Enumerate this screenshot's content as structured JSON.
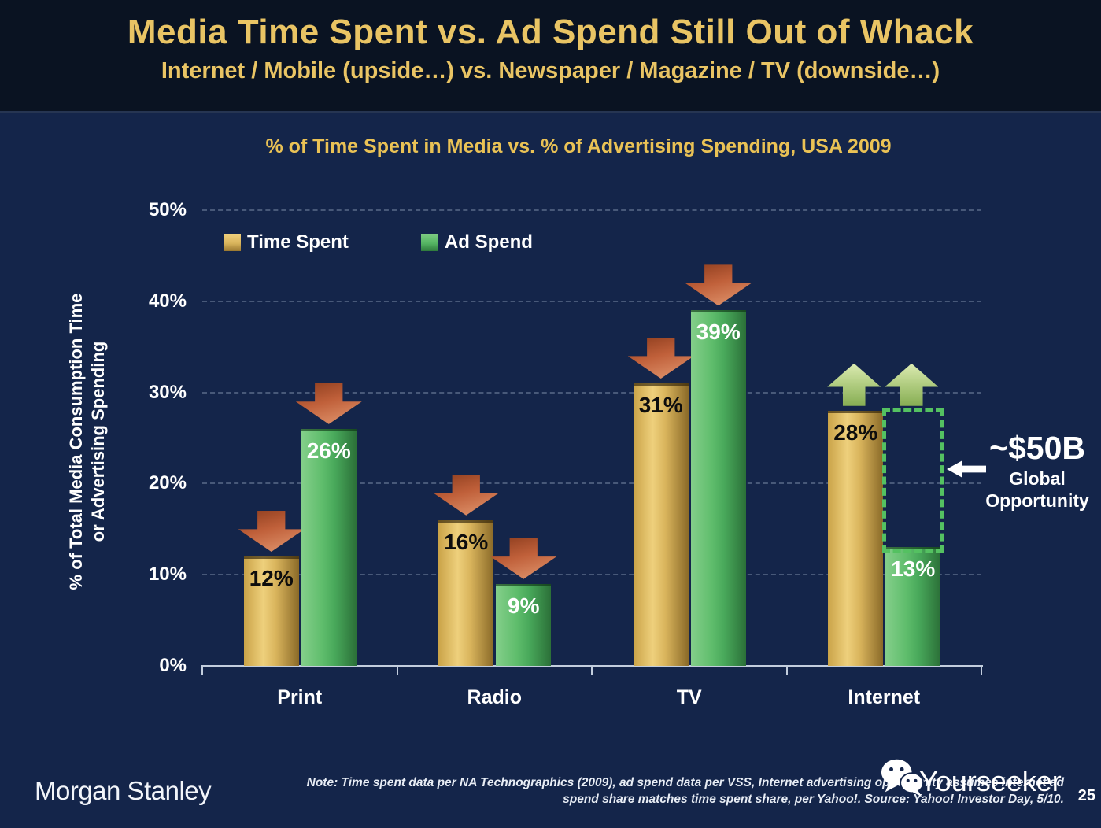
{
  "header": {
    "title": "Media Time Spent vs. Ad Spend Still Out of Whack",
    "subtitle": "Internet / Mobile (upside…) vs. Newspaper / Magazine / TV (downside…)"
  },
  "chart_data": {
    "type": "bar",
    "title": "% of Time Spent in Media vs. % of Advertising Spending, USA 2009",
    "categories": [
      "Print",
      "Radio",
      "TV",
      "Internet"
    ],
    "series": [
      {
        "name": "Time Spent",
        "color": "#e2b855",
        "values": [
          12,
          16,
          31,
          28
        ],
        "trend": [
          "down",
          "down",
          "down",
          "up"
        ]
      },
      {
        "name": "Ad Spend",
        "color": "#58b865",
        "values": [
          26,
          9,
          39,
          13
        ],
        "trend": [
          "down",
          "down",
          "down",
          "up"
        ]
      }
    ],
    "value_labels": [
      [
        "12%",
        "16%",
        "31%",
        "28%"
      ],
      [
        "26%",
        "9%",
        "39%",
        "13%"
      ]
    ],
    "ylabel_line1": "% of Total Media Consumption Time",
    "ylabel_line2": "or Advertising Spending",
    "yticks": [
      0,
      10,
      20,
      30,
      40,
      50
    ],
    "ytick_suffix": "%",
    "ylim": [
      0,
      50
    ],
    "grid": "dashed horizontal",
    "legend_position": "top-left inside plot",
    "annotation": {
      "target_category": "Internet",
      "span_from_pct": 13,
      "span_to_pct": 28,
      "headline": "~$50B",
      "sub_line1": "Global",
      "sub_line2": "Opportunity"
    }
  },
  "colors": {
    "background_body": "#14254a",
    "background_header": "#0a1322",
    "title_gold": "#e9c464",
    "bar_gold": "#e2b855",
    "bar_green": "#58b865",
    "arrow_down": "#c0603a",
    "arrow_up": "#b4cf84",
    "opportunity_dotted": "#54c161",
    "axis_line": "#c2cddd"
  },
  "footer": {
    "brand": "Morgan Stanley",
    "note_line1": "Note: Time spent data per NA Technographics (2009), ad spend data per VSS, Internet advertising opportunity assumes internet ad",
    "note_line2": "spend share matches time spent share, per Yahoo!. Source: Yahoo! Investor Day, 5/10.",
    "watermark": "Yourseeker",
    "page_number": "25"
  }
}
